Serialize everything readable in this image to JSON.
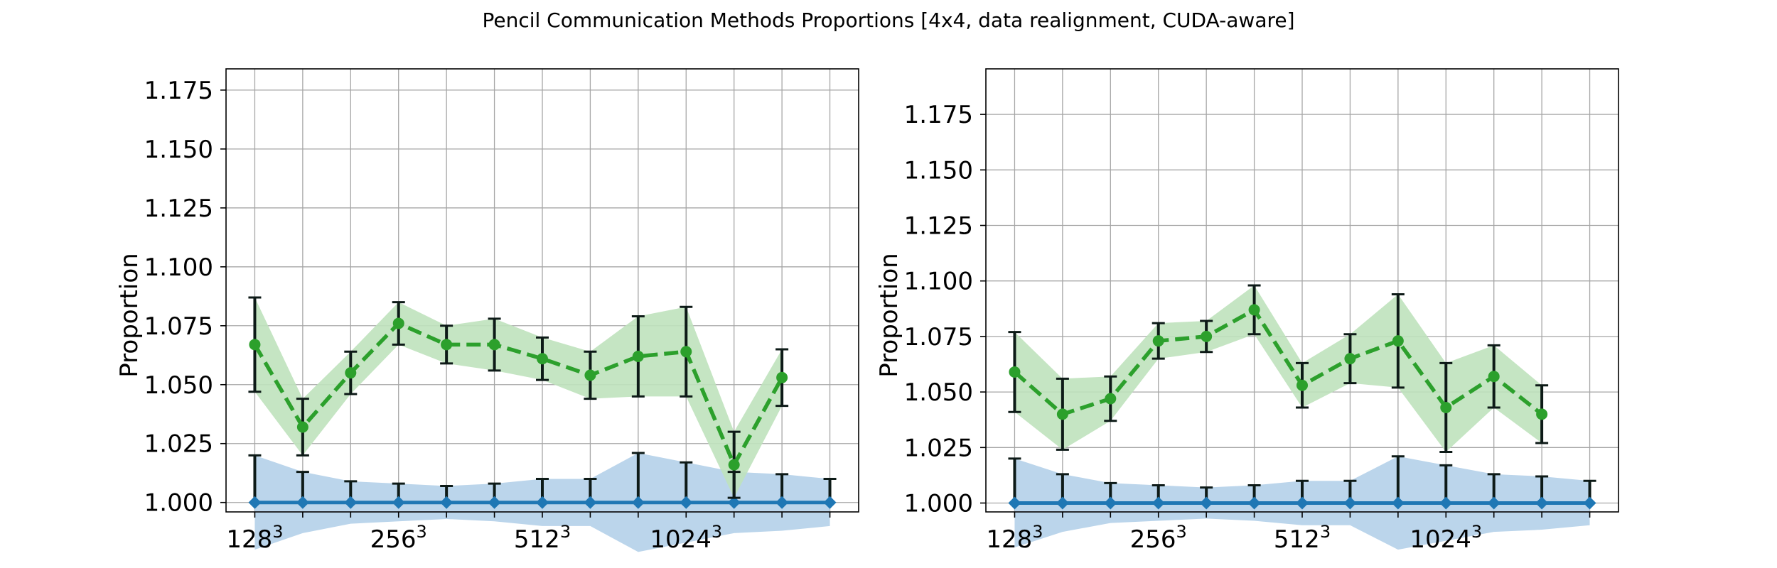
{
  "figure": {
    "title": "Pencil Communication Methods Proportions [4x4, data realignment, CUDA-aware]"
  },
  "colors": {
    "baseline": "#1f77b4",
    "baseline_fill": "#b7d3ea",
    "method": "#2ca02c",
    "method_fill": "#bfe2bd",
    "errorbar": "#0d1a17",
    "grid": "#a6a6a6"
  },
  "chart_data": [
    {
      "type": "line",
      "title": "",
      "xlabel": "",
      "ylabel": "Proportion",
      "x": [
        0,
        1,
        2,
        3,
        4,
        5,
        6,
        7,
        8,
        9,
        10,
        11,
        12
      ],
      "xlim": [
        -0.6,
        12.6
      ],
      "xticks": [
        {
          "pos": 0,
          "base": "128",
          "exp": "3"
        },
        {
          "pos": 3,
          "base": "256",
          "exp": "3"
        },
        {
          "pos": 6,
          "base": "512",
          "exp": "3"
        },
        {
          "pos": 9,
          "base": "1024",
          "exp": "3"
        }
      ],
      "ylim": [
        0.996,
        1.184
      ],
      "yticks": [
        "1.000",
        "1.025",
        "1.050",
        "1.075",
        "1.100",
        "1.125",
        "1.150",
        "1.175"
      ],
      "grid": true,
      "series": [
        {
          "role": "baseline",
          "marker": "diamond",
          "linestyle": "solid",
          "values": [
            1.0,
            1.0,
            1.0,
            1.0,
            1.0,
            1.0,
            1.0,
            1.0,
            1.0,
            1.0,
            1.0,
            1.0,
            1.0
          ],
          "errors": [
            0.02,
            0.013,
            0.009,
            0.008,
            0.007,
            0.008,
            0.01,
            0.01,
            0.021,
            0.017,
            0.013,
            0.012,
            0.01
          ]
        },
        {
          "role": "method",
          "marker": "circle",
          "linestyle": "dashed",
          "values": [
            1.067,
            1.032,
            1.055,
            1.076,
            1.067,
            1.067,
            1.061,
            1.054,
            1.062,
            1.064,
            1.016,
            1.053,
            null
          ],
          "errors": [
            0.02,
            0.012,
            0.009,
            0.009,
            0.008,
            0.011,
            0.009,
            0.01,
            0.017,
            0.019,
            0.014,
            0.012,
            null
          ]
        }
      ]
    },
    {
      "type": "line",
      "title": "",
      "xlabel": "",
      "ylabel": "Proportion",
      "x": [
        0,
        1,
        2,
        3,
        4,
        5,
        6,
        7,
        8,
        9,
        10,
        11,
        12
      ],
      "xlim": [
        -0.6,
        12.6
      ],
      "xticks": [
        {
          "pos": 0,
          "base": "128",
          "exp": "3"
        },
        {
          "pos": 3,
          "base": "256",
          "exp": "3"
        },
        {
          "pos": 6,
          "base": "512",
          "exp": "3"
        },
        {
          "pos": 9,
          "base": "1024",
          "exp": "3"
        }
      ],
      "ylim": [
        0.996,
        1.1955
      ],
      "yticks": [
        "1.000",
        "1.025",
        "1.050",
        "1.075",
        "1.100",
        "1.125",
        "1.150",
        "1.175"
      ],
      "grid": true,
      "series": [
        {
          "role": "baseline",
          "marker": "diamond",
          "linestyle": "solid",
          "values": [
            1.0,
            1.0,
            1.0,
            1.0,
            1.0,
            1.0,
            1.0,
            1.0,
            1.0,
            1.0,
            1.0,
            1.0,
            1.0
          ],
          "errors": [
            0.02,
            0.013,
            0.009,
            0.008,
            0.007,
            0.008,
            0.01,
            0.01,
            0.021,
            0.017,
            0.013,
            0.012,
            0.01
          ]
        },
        {
          "role": "method",
          "marker": "circle",
          "linestyle": "dashed",
          "values": [
            1.059,
            1.04,
            1.047,
            1.073,
            1.075,
            1.087,
            1.053,
            1.065,
            1.073,
            1.043,
            1.057,
            1.04,
            null
          ],
          "errors": [
            0.018,
            0.016,
            0.01,
            0.008,
            0.007,
            0.011,
            0.01,
            0.011,
            0.021,
            0.02,
            0.014,
            0.013,
            null
          ]
        }
      ]
    }
  ]
}
